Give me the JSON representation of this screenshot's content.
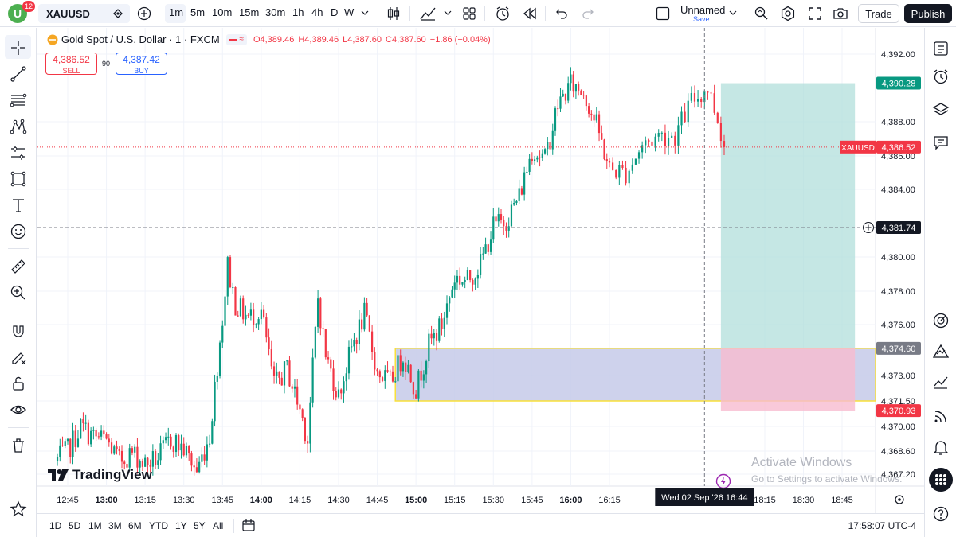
{
  "topbar": {
    "badge_count": "12",
    "avatar_letter": "U",
    "symbol": "XAUUSD",
    "timeframes": [
      "1m",
      "5m",
      "10m",
      "15m",
      "30m",
      "1h",
      "4h",
      "D",
      "W"
    ],
    "active_timeframe": "1m",
    "layout_name": "Unnamed",
    "save_label": "Save",
    "trade_label": "Trade",
    "publish_label": "Publish"
  },
  "legend": {
    "title": "Gold Spot / U.S. Dollar · 1 · FXCM",
    "o": "O4,389.46",
    "h": "H4,389.46",
    "l": "L4,387.60",
    "c": "C4,387.60",
    "change": "−1.86 (−0.04%)"
  },
  "trade_boxes": {
    "sell_price": "4,386.52",
    "sell_label": "SELL",
    "spread": "90",
    "buy_price": "4,387.42",
    "buy_label": "BUY"
  },
  "price_axis": {
    "ticks": [
      "4,392.00",
      "4,388.00",
      "4,386.00",
      "4,384.00",
      "4,380.00",
      "4,378.00",
      "4,376.00",
      "4,373.00",
      "4,371.50",
      "4,370.00",
      "4,368.60",
      "4,367.20"
    ],
    "label_target": "4,390.28",
    "label_symbol": "XAUUSD",
    "label_current": "4,386.52",
    "label_crosshair": "4,381.74",
    "label_entry": "4,374.60",
    "label_stop": "4,370.93"
  },
  "time_axis": {
    "ticks": [
      "12:45",
      "13:00",
      "13:15",
      "13:30",
      "13:45",
      "14:00",
      "14:15",
      "14:30",
      "14:45",
      "15:00",
      "15:15",
      "15:30",
      "15:45",
      "16:00",
      "16:15",
      "18:15",
      "18:30",
      "18:45"
    ],
    "crosshair_label": "Wed 02 Sep '26   16:44",
    "partial_tick": "0"
  },
  "bottombar": {
    "ranges": [
      "1D",
      "5D",
      "1M",
      "3M",
      "6M",
      "YTD",
      "1Y",
      "5Y",
      "All"
    ],
    "clock": "17:58:07 UTC-4"
  },
  "watermark": {
    "logo_text": "TradingView",
    "activate_title": "Activate Windows",
    "activate_sub": "Go to Settings to activate Windows."
  },
  "colors": {
    "up": "#089981",
    "down": "#f23645",
    "target_zone": "#b2dfdb",
    "stop_zone": "#f8bbd0",
    "demand_zone": "#c5cae9",
    "zone_border": "#f9e03a"
  },
  "chart_data": {
    "type": "candlestick",
    "symbol": "XAUUSD",
    "interval": "1",
    "ylim": [
      4366.5,
      4393.5
    ],
    "x_range": [
      "12:40",
      "18:55"
    ],
    "close_path": [
      [
        "12:40",
        4368.0
      ],
      [
        "12:45",
        4368.6
      ],
      [
        "12:50",
        4370.0
      ],
      [
        "12:55",
        4369.4
      ],
      [
        "13:00",
        4369.2
      ],
      [
        "13:05",
        4368.0
      ],
      [
        "13:10",
        4368.5
      ],
      [
        "13:15",
        4367.8
      ],
      [
        "13:20",
        4368.2
      ],
      [
        "13:25",
        4369.3
      ],
      [
        "13:30",
        4368.7
      ],
      [
        "13:35",
        4367.4
      ],
      [
        "13:40",
        4369.5
      ],
      [
        "13:45",
        4376.4
      ],
      [
        "13:47",
        4379.5
      ],
      [
        "13:50",
        4377.2
      ],
      [
        "13:55",
        4376.4
      ],
      [
        "14:00",
        4376.8
      ],
      [
        "14:05",
        4372.4
      ],
      [
        "14:10",
        4373.4
      ],
      [
        "14:15",
        4371.0
      ],
      [
        "14:18",
        4369.3
      ],
      [
        "14:22",
        4377.6
      ],
      [
        "14:25",
        4374.2
      ],
      [
        "14:30",
        4371.8
      ],
      [
        "14:35",
        4374.6
      ],
      [
        "14:40",
        4376.6
      ],
      [
        "14:45",
        4373.2
      ],
      [
        "14:50",
        4372.6
      ],
      [
        "14:55",
        4374.2
      ],
      [
        "15:00",
        4372.2
      ],
      [
        "15:05",
        4374.8
      ],
      [
        "15:10",
        4376.0
      ],
      [
        "15:15",
        4378.8
      ],
      [
        "15:20",
        4378.6
      ],
      [
        "15:25",
        4379.6
      ],
      [
        "15:30",
        4381.8
      ],
      [
        "15:35",
        4382.2
      ],
      [
        "15:40",
        4383.6
      ],
      [
        "15:45",
        4386.4
      ],
      [
        "15:50",
        4385.8
      ],
      [
        "15:55",
        4389.0
      ],
      [
        "16:00",
        4390.2
      ],
      [
        "16:05",
        4389.8
      ],
      [
        "16:10",
        4387.8
      ],
      [
        "16:15",
        4385.2
      ],
      [
        "16:20",
        4385.0
      ],
      [
        "16:25",
        4386.6
      ],
      [
        "16:30",
        4387.2
      ],
      [
        "16:35",
        4387.2
      ],
      [
        "16:40",
        4389.2
      ],
      [
        "16:45",
        4390.0
      ],
      [
        "16:48",
        4388.2
      ],
      [
        "16:50",
        4386.52
      ]
    ],
    "price_lines": {
      "current": 4386.52,
      "crosshair": 4381.74,
      "bid": 4386.52,
      "ask": 4387.42
    },
    "long_position": {
      "entry": 4374.6,
      "target": 4390.28,
      "stop": 4370.93,
      "start_time": "16:49",
      "end_time": "18:50"
    },
    "demand_zone": {
      "top": 4374.6,
      "bottom": 4371.5,
      "start_time": "14:52",
      "end_time": "18:55"
    }
  }
}
